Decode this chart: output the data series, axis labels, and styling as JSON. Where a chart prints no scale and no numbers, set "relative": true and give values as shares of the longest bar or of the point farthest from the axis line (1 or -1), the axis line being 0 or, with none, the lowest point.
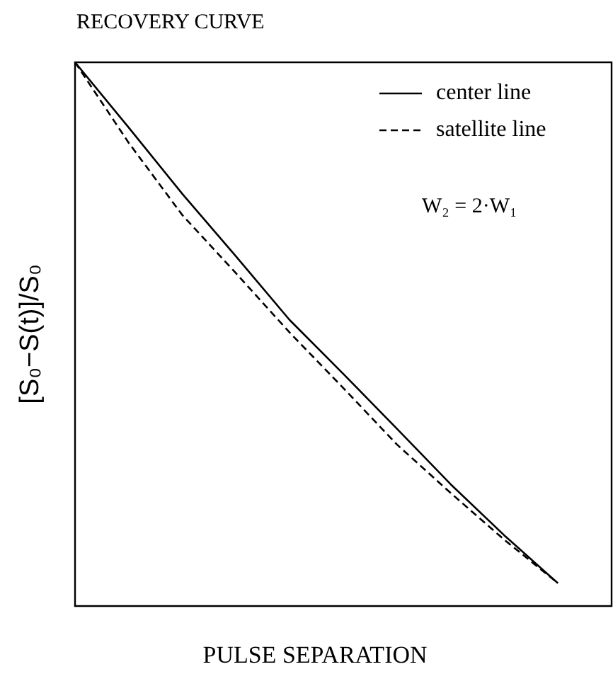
{
  "chart_data": {
    "type": "line",
    "title": "RECOVERY CURVE",
    "xlabel": "PULSE SEPARATION",
    "ylabel": "[S₀−S(t)]/S₀",
    "relative": true,
    "legend": "top right",
    "marker": "none",
    "annotations": [
      "W₂ = 2·W₁"
    ],
    "categories": [
      null,
      null,
      null,
      null,
      null,
      null,
      null,
      null,
      null,
      null,
      null
    ],
    "series": [
      {
        "name": "center line",
        "color": "#000000",
        "line_style": "solid",
        "values": [
          1.0,
          0.88,
          0.758,
          0.643,
          0.526,
          0.427,
          0.326,
          0.224,
          0.13,
          0.042,
          null
        ]
      },
      {
        "name": "satellite line",
        "color": "#000000",
        "line_style": "dashed",
        "values": [
          1.0,
          0.852,
          0.719,
          0.612,
          0.503,
          0.401,
          0.297,
          0.208,
          0.122,
          0.042,
          null
        ]
      }
    ]
  }
}
